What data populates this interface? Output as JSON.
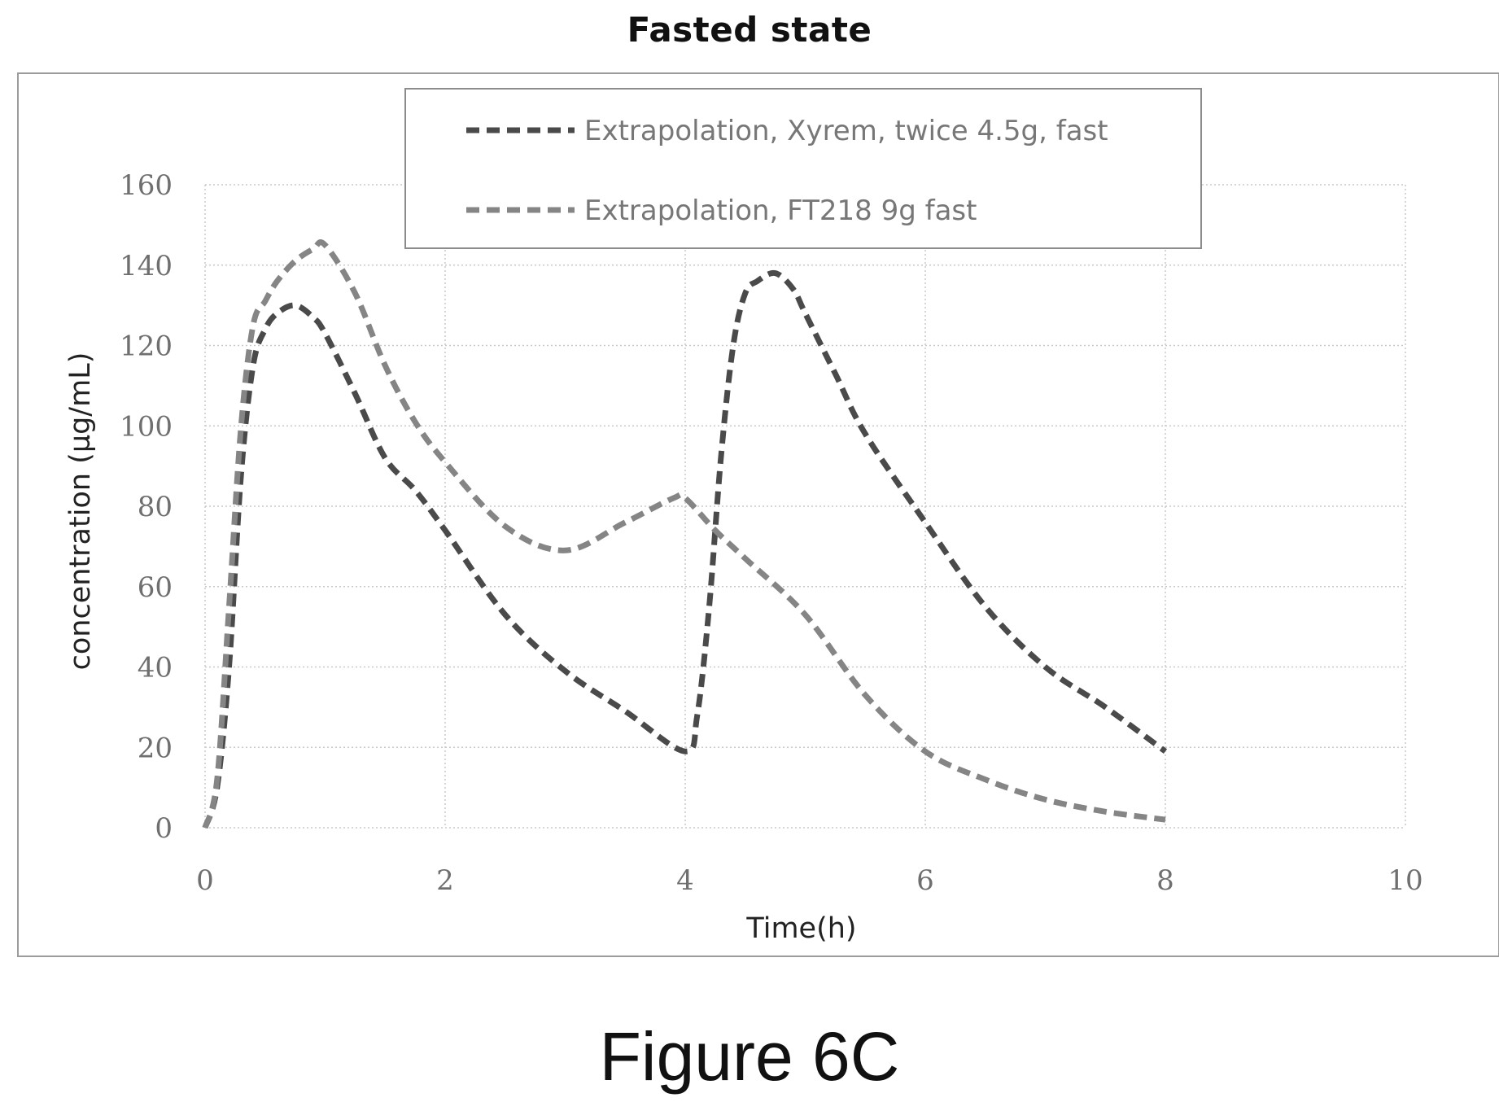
{
  "caption": "Figure 6C",
  "chart_data": {
    "type": "line",
    "title": "Fasted state",
    "xlabel": "Time(h)",
    "ylabel": "concentration (µg/mL)",
    "xlim": [
      0,
      10
    ],
    "ylim": [
      0,
      160
    ],
    "xticks": [
      0,
      2,
      4,
      6,
      8,
      10
    ],
    "yticks": [
      0,
      20,
      40,
      60,
      80,
      100,
      120,
      140,
      160
    ],
    "grid": true,
    "legend_position": "top-center",
    "series": [
      {
        "name": "Extrapolation, Xyrem, twice 4.5g, fast",
        "color": "#4a4a4a",
        "dash": "dashed",
        "x": [
          0,
          0.1,
          0.2,
          0.3,
          0.4,
          0.5,
          0.6,
          0.75,
          0.9,
          1.0,
          1.25,
          1.5,
          1.75,
          2.0,
          2.5,
          3.0,
          3.5,
          4.0,
          4.1,
          4.2,
          4.3,
          4.4,
          4.5,
          4.6,
          4.75,
          4.9,
          5.0,
          5.25,
          5.5,
          6.0,
          6.5,
          7.0,
          7.5,
          8.0
        ],
        "y": [
          0,
          10,
          40,
          88,
          115,
          124,
          128,
          130,
          127,
          123,
          108,
          92,
          84,
          74,
          53,
          39,
          29,
          19,
          28,
          55,
          93,
          120,
          133,
          136,
          138,
          134,
          128,
          113,
          98,
          76,
          55,
          40,
          30,
          19
        ]
      },
      {
        "name": "Extrapolation, FT218 9g fast",
        "color": "#858585",
        "dash": "dashed",
        "x": [
          0,
          0.1,
          0.2,
          0.3,
          0.4,
          0.5,
          0.6,
          0.75,
          0.9,
          1.0,
          1.25,
          1.5,
          1.75,
          2.0,
          2.5,
          3.0,
          3.5,
          3.9,
          4.0,
          4.25,
          4.5,
          5.0,
          5.5,
          6.0,
          6.5,
          7.0,
          7.5,
          8.0
        ],
        "y": [
          0,
          12,
          55,
          100,
          125,
          131,
          136,
          141,
          144,
          145,
          133,
          115,
          101,
          91,
          75,
          69,
          76,
          82,
          82,
          74,
          67,
          53,
          33,
          19,
          12,
          7,
          4,
          2
        ]
      }
    ]
  }
}
